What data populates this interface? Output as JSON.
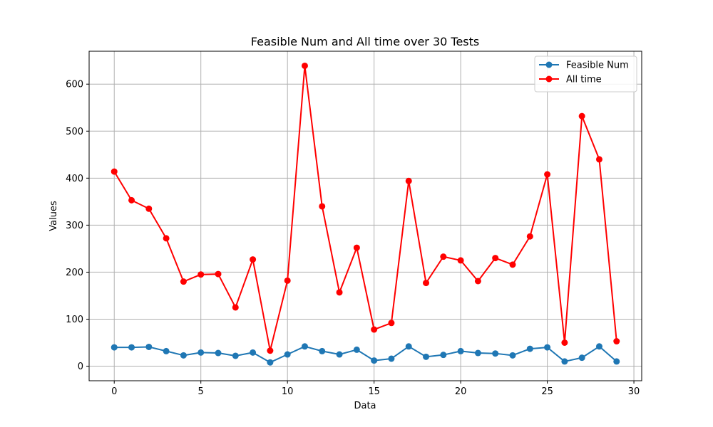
{
  "chart_data": {
    "type": "line",
    "title": "Feasible Num and All time over 30 Tests",
    "xlabel": "Data",
    "ylabel": "Values",
    "xlim": [
      -1.45,
      30.45
    ],
    "ylim": [
      -31,
      670
    ],
    "xticks": [
      0,
      5,
      10,
      15,
      20,
      25,
      30
    ],
    "yticks": [
      0,
      100,
      200,
      300,
      400,
      500,
      600
    ],
    "grid": true,
    "legend_position": "top-right",
    "x": [
      0,
      1,
      2,
      3,
      4,
      5,
      6,
      7,
      8,
      9,
      10,
      11,
      12,
      13,
      14,
      15,
      16,
      17,
      18,
      19,
      20,
      21,
      22,
      23,
      24,
      25,
      26,
      27,
      28,
      29
    ],
    "series": [
      {
        "name": "Feasible Num",
        "color": "#1f77b4",
        "marker": "circle",
        "values": [
          40,
          40,
          41,
          32,
          23,
          29,
          28,
          22,
          29,
          8,
          25,
          42,
          32,
          25,
          35,
          12,
          16,
          42,
          20,
          24,
          32,
          28,
          27,
          23,
          37,
          40,
          10,
          18,
          42,
          10
        ]
      },
      {
        "name": "All time",
        "color": "#ff0000",
        "marker": "circle",
        "values": [
          414,
          353,
          335,
          272,
          180,
          195,
          196,
          125,
          227,
          33,
          182,
          639,
          340,
          157,
          252,
          78,
          92,
          394,
          177,
          233,
          225,
          181,
          230,
          216,
          276,
          408,
          50,
          532,
          440,
          53
        ]
      }
    ]
  }
}
